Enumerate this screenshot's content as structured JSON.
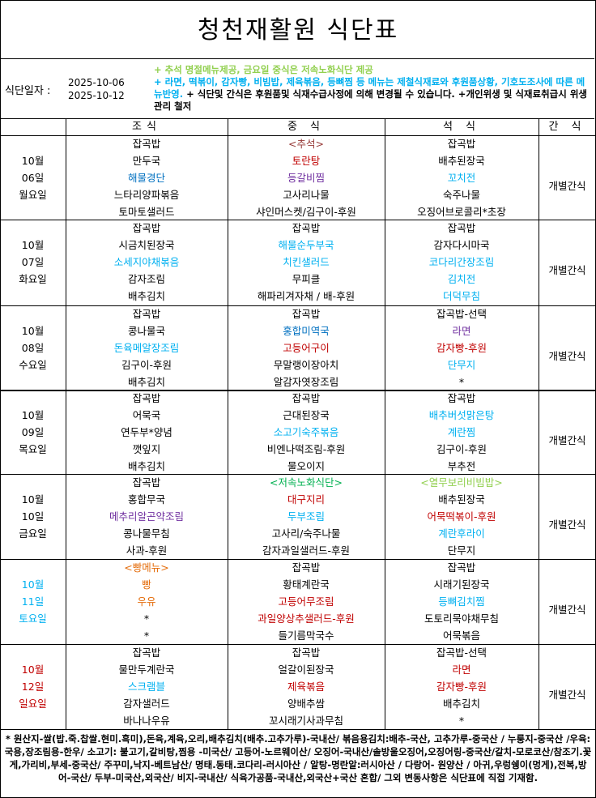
{
  "title": "청천재활원 식단표",
  "info": {
    "label": "식단일자 :",
    "date_start": "2025-10-06",
    "date_end": "2025-10-12",
    "notes": [
      {
        "text": "+ 추석 명절메뉴제공, 금요일 중식은 저속노화식단 제공",
        "color": "#92d050"
      },
      {
        "text": "+ 라면, 떡볶이, 감자빵, 비빔밥, 제육볶음, 등뼈찜 등 메뉴는 제철식재료와 후원품상황, 기호도조사에 따른 메뉴반영.",
        "color": "#00b0f0"
      },
      {
        "text": " + 식단및 간식은 후원품및 식재수급사정에 의해 변경될 수 있습니다. +개인위생 및 식재료취급시 위생관리 철저",
        "color": "#000000"
      }
    ]
  },
  "headers": {
    "breakfast": "조식",
    "lunch": "중 식",
    "dinner": "석 식",
    "snack": "간 식"
  },
  "colors": {
    "k": "#000000",
    "b": "#0070c0",
    "lb": "#00b0f0",
    "r": "#c00000",
    "p": "#7030a0",
    "g": "#00b050",
    "lg": "#92d050",
    "o": "#e46c0a",
    "dr": "#953735"
  },
  "days": [
    {
      "month": "10월",
      "day": "06일",
      "weekday": "월요일",
      "date_color": "k",
      "snack": "개별간식",
      "breakfast": [
        [
          "잡곡밥",
          "k"
        ],
        [
          "만두국",
          "k"
        ],
        [
          "해물경단",
          "b"
        ],
        [
          "느타리양파볶음",
          "k"
        ],
        [
          "토마토샐러드",
          "k"
        ]
      ],
      "lunch": [
        [
          "<추석>",
          "dr"
        ],
        [
          "토란탕",
          "r"
        ],
        [
          "등갈비찜",
          "p"
        ],
        [
          "고사리나물",
          "k"
        ],
        [
          "샤인머스켓/김구이-후원",
          "k"
        ]
      ],
      "dinner": [
        [
          "잡곡밥",
          "k"
        ],
        [
          "배추된장국",
          "k"
        ],
        [
          "꼬치전",
          "lb"
        ],
        [
          "숙주나물",
          "k"
        ],
        [
          "오징어브로콜리*초장",
          "k"
        ]
      ]
    },
    {
      "month": "10월",
      "day": "07일",
      "weekday": "화요일",
      "date_color": "k",
      "snack": "개별간식",
      "breakfast": [
        [
          "잡곡밥",
          "k"
        ],
        [
          "시금치된장국",
          "k"
        ],
        [
          "소세지야채볶음",
          "lb"
        ],
        [
          "감자조림",
          "k"
        ],
        [
          "배추김치",
          "k"
        ]
      ],
      "lunch": [
        [
          "잡곡밥",
          "k"
        ],
        [
          "해물순두부국",
          "lb"
        ],
        [
          "치킨샐러드",
          "lb"
        ],
        [
          "무피클",
          "k"
        ],
        [
          "해파리겨자채 / 배-후원",
          "k"
        ]
      ],
      "dinner": [
        [
          "잡곡밥",
          "k"
        ],
        [
          "감자다시마국",
          "k"
        ],
        [
          "코다리간장조림",
          "lb"
        ],
        [
          "김치전",
          "lb"
        ],
        [
          "더덕무침",
          "lb"
        ]
      ]
    },
    {
      "month": "10월",
      "day": "08일",
      "weekday": "수요일",
      "date_color": "k",
      "snack": "개별간식",
      "breakfast": [
        [
          "잡곡밥",
          "k"
        ],
        [
          "콩나물국",
          "k"
        ],
        [
          "돈육메알장조림",
          "lb"
        ],
        [
          "김구이-후원",
          "k"
        ],
        [
          "배추김치",
          "k"
        ]
      ],
      "lunch": [
        [
          "잡곡밥",
          "k"
        ],
        [
          "홍합미역국",
          "b"
        ],
        [
          "고등어구이",
          "r"
        ],
        [
          "무말랭이장아치",
          "k"
        ],
        [
          "알감자엿장조림",
          "k"
        ]
      ],
      "dinner": [
        [
          "잡곡밥-선택",
          "k"
        ],
        [
          "라면",
          "p"
        ],
        [
          "감자빵-후원",
          "r"
        ],
        [
          "단무지",
          "lb"
        ],
        [
          "*",
          "k"
        ]
      ]
    },
    {
      "month": "10월",
      "day": "09일",
      "weekday": "목요일",
      "date_color": "k",
      "snack": "개별간식",
      "breakfast": [
        [
          "잡곡밥",
          "k"
        ],
        [
          "어묵국",
          "k"
        ],
        [
          "연두부*양념",
          "k"
        ],
        [
          "깻잎지",
          "k"
        ],
        [
          "배추김치",
          "k"
        ]
      ],
      "lunch": [
        [
          "잡곡밥",
          "k"
        ],
        [
          "근대된장국",
          "k"
        ],
        [
          "소고기숙주볶음",
          "lb"
        ],
        [
          "비엔나떡조림-후원",
          "k"
        ],
        [
          "물오이지",
          "k"
        ]
      ],
      "dinner": [
        [
          "잡곡밥",
          "k"
        ],
        [
          "배추버섯맑은탕",
          "lb"
        ],
        [
          "계란찜",
          "lb"
        ],
        [
          "김구이-후원",
          "k"
        ],
        [
          "부추전",
          "k"
        ]
      ]
    },
    {
      "month": "10월",
      "day": "10일",
      "weekday": "금요일",
      "date_color": "k",
      "snack": "개별간식",
      "breakfast": [
        [
          "잡곡밥",
          "k"
        ],
        [
          "홍합무국",
          "k"
        ],
        [
          "메추리알곤약조림",
          "p"
        ],
        [
          "콩나물무침",
          "k"
        ],
        [
          "사과-후원",
          "k"
        ]
      ],
      "lunch": [
        [
          "<저속노화식단>",
          "g"
        ],
        [
          "대구지리",
          "r"
        ],
        [
          "두부조림",
          "lb"
        ],
        [
          "고사리/숙주나물",
          "k"
        ],
        [
          "감자과일샐러드-후원",
          "k"
        ]
      ],
      "dinner": [
        [
          "<열무보리비빔밥>",
          "lg"
        ],
        [
          "배추된장국",
          "k"
        ],
        [
          "어묵떡볶이-후원",
          "r"
        ],
        [
          "계란후라이",
          "lb"
        ],
        [
          "단무지",
          "k"
        ]
      ]
    },
    {
      "month": "10월",
      "day": "11일",
      "weekday": "토요일",
      "date_color": "lb",
      "snack": "개별간식",
      "breakfast": [
        [
          "<빵메뉴>",
          "o"
        ],
        [
          "빵",
          "o"
        ],
        [
          "우유",
          "o"
        ],
        [
          "*",
          "k"
        ],
        [
          "*",
          "k"
        ]
      ],
      "lunch": [
        [
          "잡곡밥",
          "k"
        ],
        [
          "황태계란국",
          "k"
        ],
        [
          "고등어무조림",
          "r"
        ],
        [
          "과일양상추샐러드-후원",
          "r"
        ],
        [
          "들기름막국수",
          "k"
        ]
      ],
      "dinner": [
        [
          "잡곡밥",
          "k"
        ],
        [
          "시래기된장국",
          "k"
        ],
        [
          "등뼈김치찜",
          "lb"
        ],
        [
          "도토리묵야채무침",
          "k"
        ],
        [
          "어묵볶음",
          "k"
        ]
      ]
    },
    {
      "month": "10월",
      "day": "12일",
      "weekday": "일요일",
      "date_color": "r",
      "snack": "개별간식",
      "breakfast": [
        [
          "잡곡밥",
          "k"
        ],
        [
          "물만두계란국",
          "k"
        ],
        [
          "스크램블",
          "lb"
        ],
        [
          "감자샐러드",
          "k"
        ],
        [
          "바나나우유",
          "k"
        ]
      ],
      "lunch": [
        [
          "잡곡밥",
          "k"
        ],
        [
          "얼갈이된장국",
          "k"
        ],
        [
          "제육볶음",
          "r"
        ],
        [
          "양배추쌈",
          "k"
        ],
        [
          "꼬시래기사과무침",
          "k"
        ]
      ],
      "dinner": [
        [
          "잡곡밥-선택",
          "k"
        ],
        [
          "라면",
          "r"
        ],
        [
          "감자빵-후원",
          "r"
        ],
        [
          "배추김치",
          "k"
        ],
        [
          "*",
          "k"
        ]
      ]
    }
  ],
  "footer": "* 원산지-쌀(밥.죽.찹쌀.현미.흑미),돈육,계육,오리,배추김치(배추.고추가루)-국내산/ 볶음용김치:배추-국산, 고추가루-중국산 / 누룽지-중국산 /우육:국용,장조림용-한우/ 소고기: 불고기,갈비탕,찜용 -미국산/ 고등어-노르웨이산/ 오징어-국내산/솔방울오징어,오징어링-중국산/갈치-모로코산/참조기.꽃게,가리비,부세-중국산/ 주꾸미,낙지-베트남산/ 명태.동태.코다리-러시아산 / 알탕-명란알:러시아산 / 다랑어- 원양산 / 아귀,우렁쉥이(멍게),전복,방어-국산/ 두부-미국산,외국산/ 비지-국내산/ 식육가공품-국내산,외국산+국산 혼합/ 그외 변동사항은 식단표에 직접 기재함."
}
